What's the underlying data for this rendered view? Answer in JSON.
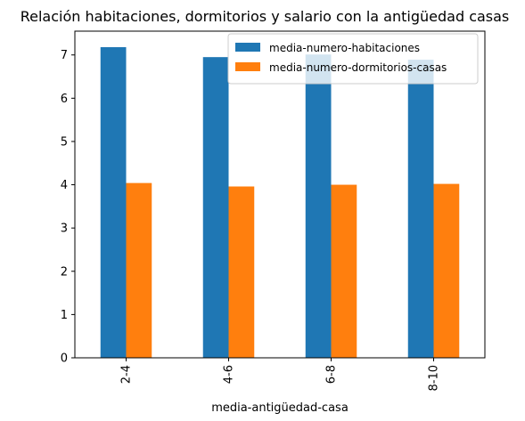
{
  "chart_data": {
    "type": "bar",
    "title": "Relación habitaciones, dormitorios y salario con la antigüedad casas",
    "xlabel": "media-antigüedad-casa",
    "ylabel": "",
    "categories": [
      "2-4",
      "4-6",
      "6-8",
      "8-10"
    ],
    "series": [
      {
        "name": "media-numero-habitaciones",
        "color": "#1f77b4",
        "values": [
          7.18,
          6.95,
          7.01,
          6.89
        ]
      },
      {
        "name": "media-numero-dormitorios-casas",
        "color": "#ff7f0e",
        "values": [
          4.04,
          3.96,
          4.0,
          4.02
        ]
      }
    ],
    "ylim": [
      0,
      7.55
    ],
    "yticks": [
      0,
      1,
      2,
      3,
      4,
      5,
      6,
      7
    ],
    "grid": false,
    "legend_position": "top-right"
  }
}
